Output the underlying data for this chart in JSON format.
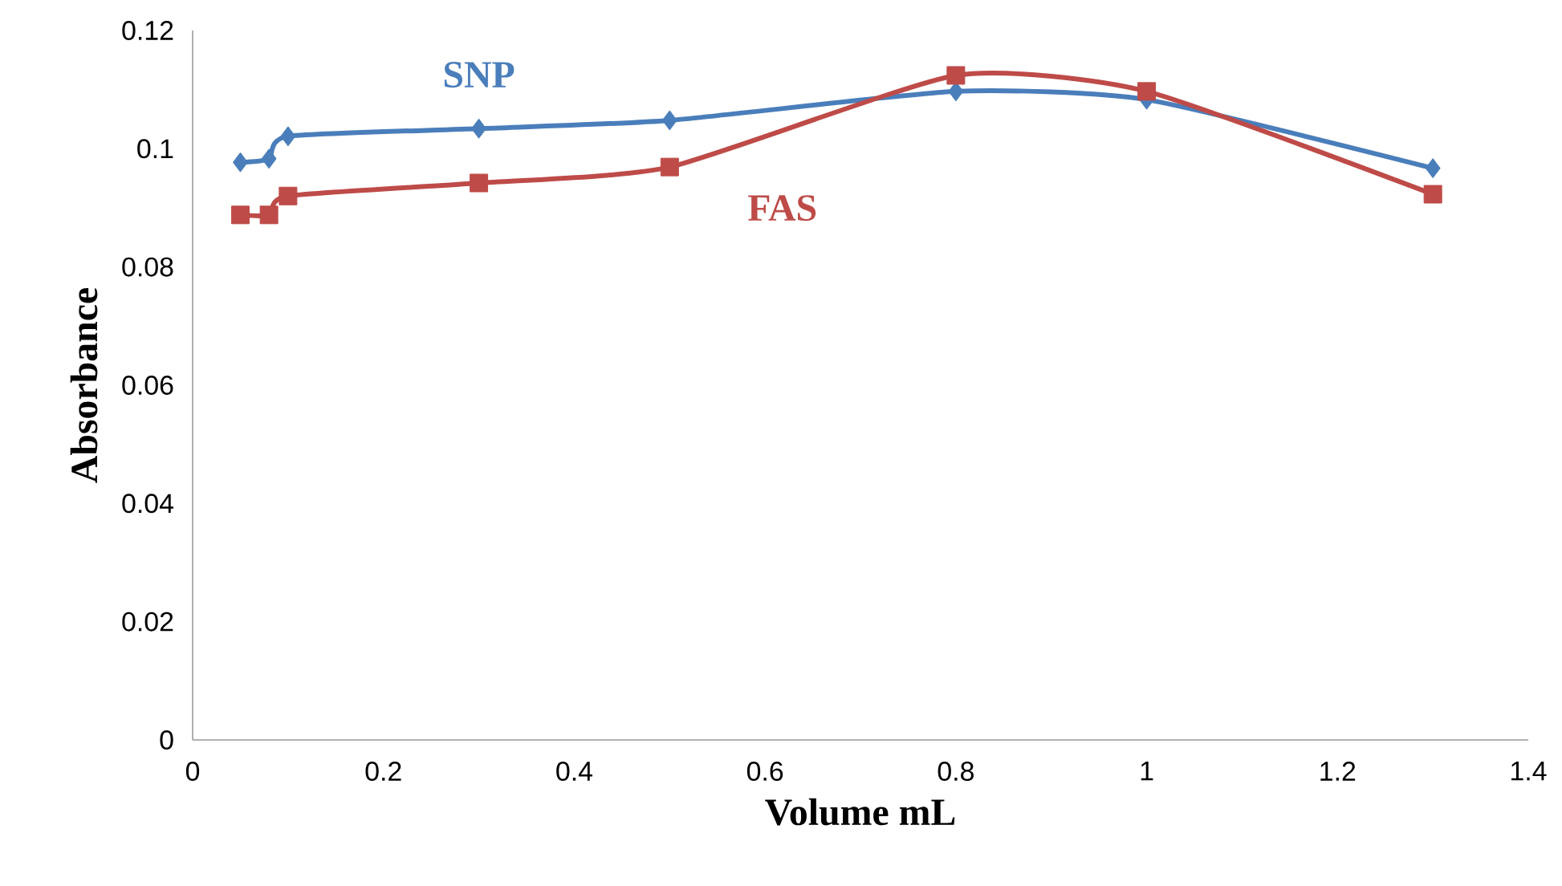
{
  "chart_data": {
    "type": "line",
    "xlabel": "Volume mL",
    "ylabel": "Absorbance",
    "x": [
      0.05,
      0.08,
      0.1,
      0.3,
      0.5,
      0.8,
      1.0,
      1.3
    ],
    "series": [
      {
        "name": "SNP",
        "color": "#4a7ebb",
        "marker": "diamond",
        "values": [
          0.0977,
          0.0983,
          0.1021,
          0.1034,
          0.1048,
          0.1097,
          0.1083,
          0.0967
        ]
      },
      {
        "name": "FAS",
        "color": "#be4b48",
        "marker": "square",
        "values": [
          0.0888,
          0.0888,
          0.092,
          0.0942,
          0.0969,
          0.1124,
          0.1097,
          0.0923
        ]
      }
    ],
    "xlim": [
      0,
      1.4
    ],
    "xticks": [
      0,
      0.2,
      0.4,
      0.6,
      0.8,
      1,
      1.2,
      1.4
    ],
    "ylim": [
      0,
      0.12
    ],
    "yticks": [
      0,
      0.02,
      0.04,
      0.06,
      0.08,
      0.1,
      0.12
    ],
    "line_style": "solid"
  }
}
